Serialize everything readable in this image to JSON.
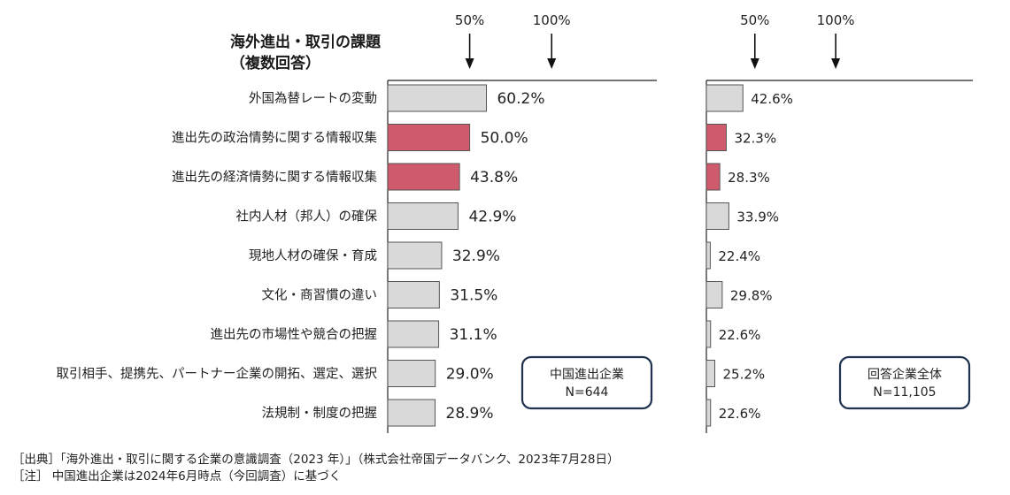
{
  "title": {
    "line1": "海外進出・取引の課題",
    "line2": "（複数回答）"
  },
  "chart_data": [
    {
      "type": "bar",
      "orientation": "horizontal",
      "categories": [
        "外国為替レートの変動",
        "進出先の政治情勢に関する情報収集",
        "進出先の経済情勢に関する情報収集",
        "社内人材（邦人）の確保",
        "現地人材の確保・育成",
        "文化・商習慣の違い",
        "進出先の市場性や競合の把握",
        "取引相手、提携先、パートナー企業の開拓、選定、選択",
        "法規制・制度の把握"
      ],
      "values": [
        60.2,
        50.0,
        43.8,
        42.9,
        32.9,
        31.5,
        31.1,
        29.0,
        28.9
      ],
      "value_labels": [
        "60.2%",
        "50.0%",
        "43.8%",
        "42.9%",
        "32.9%",
        "31.5%",
        "31.1%",
        "29.0%",
        "28.9%"
      ],
      "highlighted": [
        false,
        true,
        true,
        false,
        false,
        false,
        false,
        false,
        false
      ],
      "markers": [
        {
          "value": 50,
          "label": "50%"
        },
        {
          "value": 100,
          "label": "100%"
        }
      ],
      "xlim": [
        0,
        100
      ],
      "legend_box": [
        "中国進出企業",
        "N=644"
      ]
    },
    {
      "type": "bar",
      "orientation": "horizontal",
      "categories": [
        "外国為替レートの変動",
        "進出先の政治情勢に関する情報収集",
        "進出先の経済情勢に関する情報収集",
        "社内人材（邦人）の確保",
        "現地人材の確保・育成",
        "文化・商習慣の違い",
        "進出先の市場性や競合の把握",
        "取引相手、提携先、パートナー企業の開拓、選定、選択",
        "法規制・制度の把握"
      ],
      "values": [
        42.6,
        32.3,
        28.3,
        33.9,
        22.4,
        29.8,
        22.6,
        25.2,
        22.6
      ],
      "value_labels": [
        "42.6%",
        "32.3%",
        "28.3%",
        "33.9%",
        "22.4%",
        "29.8%",
        "22.6%",
        "25.2%",
        "22.6%"
      ],
      "highlighted": [
        false,
        true,
        true,
        false,
        false,
        false,
        false,
        false,
        false
      ],
      "markers": [
        {
          "value": 50,
          "label": "50%"
        },
        {
          "value": 100,
          "label": "100%"
        }
      ],
      "xlim": [
        20,
        100
      ],
      "legend_box": [
        "回答企業全体",
        "N=11,105"
      ]
    }
  ],
  "colors": {
    "bar": "#d9d9d9",
    "bar_stroke": "#555555",
    "highlight": "#cf5a6c",
    "box_border": "#1f3350",
    "text": "#222222"
  },
  "footer": {
    "source": "［出典］「海外進出・取引に関する企業の意識調査（2023 年）」（株式会社帝国データバンク、2023年7月28日）",
    "note": "［注］ 中国進出企業は2024年6月時点（今回調査）に基づく"
  }
}
